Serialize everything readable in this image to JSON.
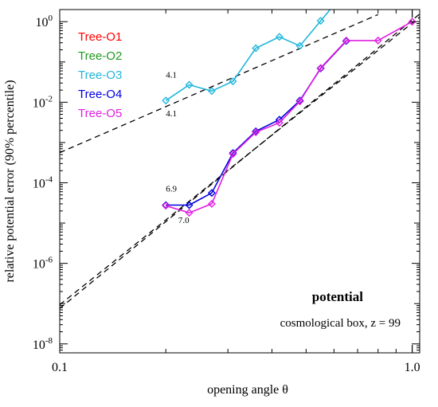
{
  "chart_data": {
    "type": "line",
    "x_scale": "log",
    "y_scale": "log",
    "xlim": [
      0.1,
      1.05
    ],
    "ylim": [
      6e-09,
      2.0
    ],
    "xlabel": "opening angle  θ",
    "ylabel": "relative potential error (90% percentile)",
    "x_ticks": [
      {
        "value": 0.1,
        "label": "0.1"
      },
      {
        "value": 1.0,
        "label": "1.0"
      }
    ],
    "y_ticks": [
      {
        "value": 1e-08,
        "base": "10",
        "exp": "-8"
      },
      {
        "value": 1e-06,
        "base": "10",
        "exp": "-6"
      },
      {
        "value": 0.0001,
        "base": "10",
        "exp": "-4"
      },
      {
        "value": 0.01,
        "base": "10",
        "exp": "-2"
      },
      {
        "value": 1,
        "base": "10",
        "exp": "0"
      }
    ],
    "legend_position": "top-left",
    "series": [
      {
        "name": "Tree-O1",
        "color": "#ff0000",
        "marker": "diamond",
        "x": [],
        "y": []
      },
      {
        "name": "Tree-O2",
        "color": "#1f9a1f",
        "marker": "diamond",
        "x": [],
        "y": []
      },
      {
        "name": "Tree-O3",
        "color": "#21b6dc",
        "marker": "diamond",
        "x": [
          0.2,
          0.233,
          0.27,
          0.31,
          0.36,
          0.42,
          0.48,
          0.55,
          0.65
        ],
        "y": [
          0.011,
          0.027,
          0.019,
          0.033,
          0.22,
          0.42,
          0.25,
          1.05,
          6.0
        ]
      },
      {
        "name": "Tree-O4",
        "color": "#0000dd",
        "marker": "diamond",
        "x": [
          0.2,
          0.233,
          0.27,
          0.31,
          0.36,
          0.42,
          0.48,
          0.55,
          0.65
        ],
        "y": [
          2.8e-05,
          2.8e-05,
          5.6e-05,
          0.00055,
          0.0019,
          0.0037,
          0.011,
          0.069,
          0.33
        ]
      },
      {
        "name": "Tree-O5",
        "color": "#e01ee0",
        "marker": "diamond",
        "x": [
          0.2,
          0.233,
          0.27,
          0.31,
          0.36,
          0.42,
          0.48,
          0.55,
          0.65,
          0.8,
          1.0
        ],
        "y": [
          2.7e-05,
          1.8e-05,
          3e-05,
          0.00052,
          0.0018,
          0.0031,
          0.0105,
          0.071,
          0.34,
          0.34,
          1.0
        ]
      }
    ],
    "fits": [
      {
        "x": [
          0.1,
          0.8
        ],
        "y": [
          0.00056,
          1.5
        ],
        "label": "4.1",
        "label_x": 0.2,
        "label_y": 0.041
      },
      {
        "x": [
          0.1,
          1.05
        ],
        "y": [
          9.4e-08,
          1.3
        ],
        "label": "6.9",
        "label_x": 0.2,
        "label_y": 6.1e-05
      },
      {
        "x": [
          0.1,
          1.05
        ],
        "y": [
          7.6e-08,
          1.55
        ],
        "label": "7.0",
        "label_x": 0.217,
        "label_y": 1e-05
      },
      {
        "x": [],
        "y": [],
        "label": "4.1",
        "label_x": 0.2,
        "label_y": 0.0045
      }
    ],
    "annotations": {
      "title": "potential",
      "subtitle": "cosmological box, z = 99"
    }
  }
}
